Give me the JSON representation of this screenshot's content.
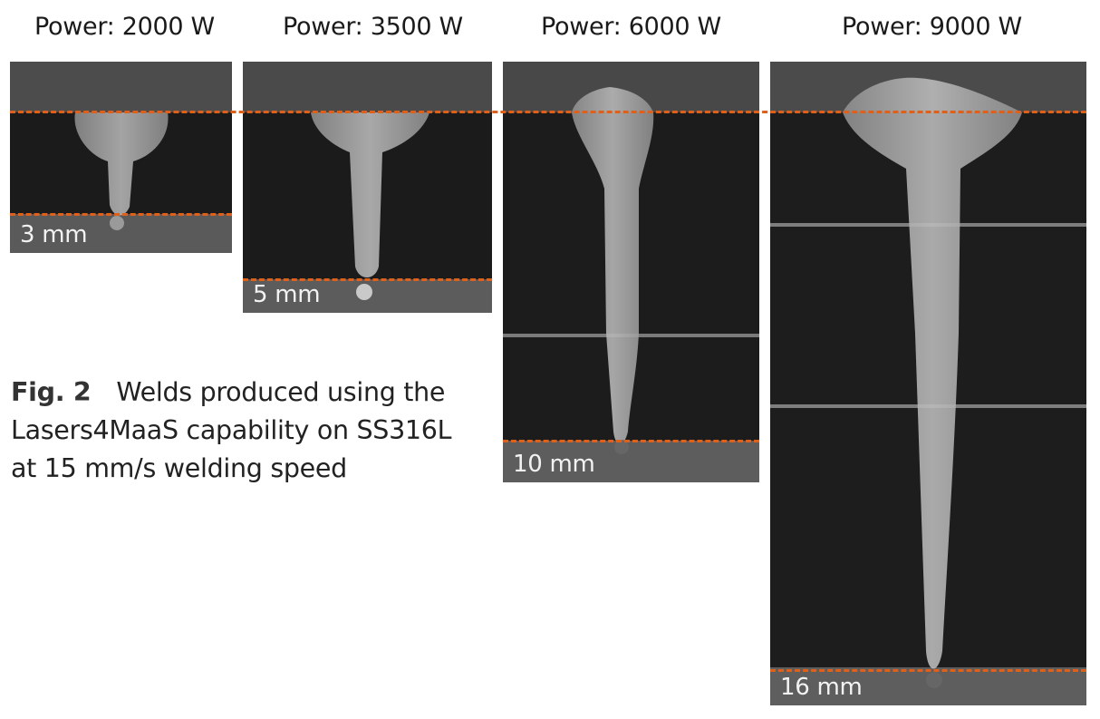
{
  "panels": [
    {
      "power": "Power: 2000 W",
      "depth": "3 mm"
    },
    {
      "power": "Power: 3500 W",
      "depth": "5 mm"
    },
    {
      "power": "Power: 6000 W",
      "depth": "10 mm"
    },
    {
      "power": "Power: 9000 W",
      "depth": "16 mm"
    }
  ],
  "caption": {
    "fig_label": "Fig. 2",
    "text": "Welds produced using the Lasers4MaaS capability on SS316L at 15 mm/s welding speed"
  },
  "colors": {
    "guide_line": "#e0601a",
    "material": "#1c1c1c",
    "weld": "#a9a9a9"
  }
}
